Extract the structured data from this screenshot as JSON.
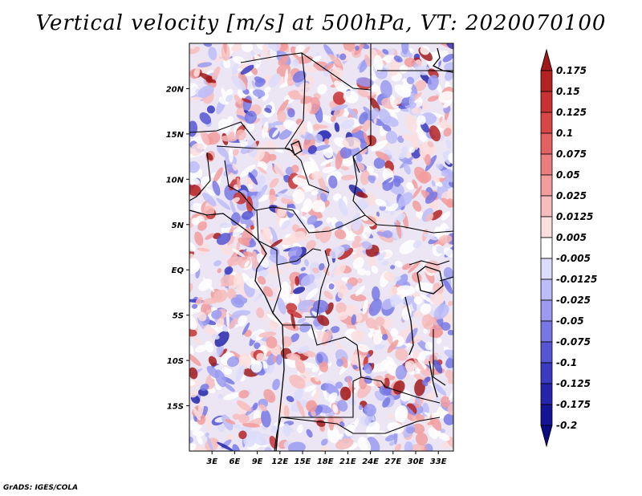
{
  "title": "Vertical velocity [m/s] at 500hPa, VT: 2020070100",
  "credit": "GrADS: IGES/COLA",
  "map": {
    "lon_range": [
      0,
      35
    ],
    "lat_range": [
      -20,
      25
    ],
    "lat_labels": [
      {
        "value": 20,
        "text": "20N"
      },
      {
        "value": 15,
        "text": "15N"
      },
      {
        "value": 10,
        "text": "10N"
      },
      {
        "value": 5,
        "text": "5N"
      },
      {
        "value": 0,
        "text": "EQ"
      },
      {
        "value": -5,
        "text": "5S"
      },
      {
        "value": -10,
        "text": "10S"
      },
      {
        "value": -15,
        "text": "15S"
      }
    ],
    "lon_labels": [
      {
        "value": 3,
        "text": "3E"
      },
      {
        "value": 6,
        "text": "6E"
      },
      {
        "value": 9,
        "text": "9E"
      },
      {
        "value": 12,
        "text": "12E"
      },
      {
        "value": 15,
        "text": "15E"
      },
      {
        "value": 18,
        "text": "18E"
      },
      {
        "value": 21,
        "text": "21E"
      },
      {
        "value": 24,
        "text": "24E"
      },
      {
        "value": 27,
        "text": "27E"
      },
      {
        "value": 30,
        "text": "30E"
      },
      {
        "value": 33,
        "text": "33E"
      }
    ]
  },
  "colorbar": {
    "labels": [
      "0.175",
      "0.15",
      "0.125",
      "0.1",
      "0.075",
      "0.05",
      "0.025",
      "0.0125",
      "0.005",
      "-0.005",
      "-0.0125",
      "-0.025",
      "-0.05",
      "-0.075",
      "-0.1",
      "-0.125",
      "-0.175",
      "-0.2"
    ],
    "colors": [
      "#a01a1a",
      "#b42222",
      "#c83232",
      "#d84646",
      "#e26262",
      "#ea7e7e",
      "#f29c9c",
      "#f7bcbc",
      "#fbdede",
      "#ffffff",
      "#dcdcfc",
      "#bcbcf8",
      "#9a9af0",
      "#7878e4",
      "#5656d4",
      "#3a3ac2",
      "#2424ac",
      "#141496",
      "#0a0a82"
    ]
  }
}
